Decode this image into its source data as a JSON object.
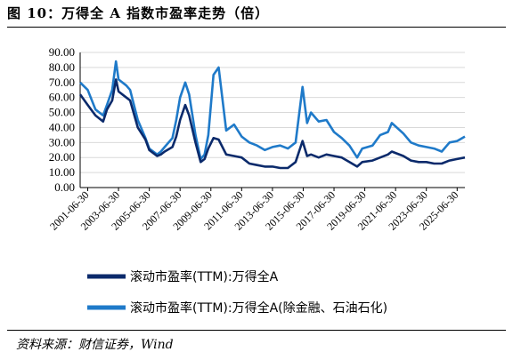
{
  "header": {
    "title": "图 10：万得全 A 指数市盈率走势（倍）"
  },
  "footer": {
    "source": "资料来源：财信证券，Wind"
  },
  "colors": {
    "series1": "#0b2a6b",
    "series2": "#1f7ac9",
    "grid": "#d9d9d9"
  },
  "chart_data": {
    "type": "line",
    "title": "",
    "xlabel": "",
    "ylabel": "",
    "ylim": [
      0,
      90
    ],
    "yticks": [
      "0.00",
      "10.00",
      "20.00",
      "30.00",
      "40.00",
      "50.00",
      "60.00",
      "70.00",
      "80.00",
      "90.00"
    ],
    "xlim": [
      "2001-01-01",
      "2025-12-31"
    ],
    "xticks": [
      "2001-06-30",
      "2003-06-30",
      "2005-06-30",
      "2007-06-30",
      "2009-06-30",
      "2011-06-30",
      "2013-06-30",
      "2015-06-30",
      "2017-06-30",
      "2019-06-30",
      "2021-06-30",
      "2023-06-30",
      "2025-06-30"
    ],
    "legend": "bottom",
    "grid": true,
    "series": [
      {
        "name": "滚动市盈率(TTM):万得全A",
        "points": [
          [
            "2001-01-01",
            62
          ],
          [
            "2001-06-30",
            55
          ],
          [
            "2001-12-31",
            48
          ],
          [
            "2002-06-30",
            44
          ],
          [
            "2002-09-30",
            52
          ],
          [
            "2003-01-31",
            58
          ],
          [
            "2003-04-30",
            72
          ],
          [
            "2003-06-30",
            64
          ],
          [
            "2003-12-31",
            60
          ],
          [
            "2004-03-31",
            58
          ],
          [
            "2004-09-30",
            40
          ],
          [
            "2005-03-31",
            32
          ],
          [
            "2005-06-30",
            25
          ],
          [
            "2005-12-31",
            21
          ],
          [
            "2006-03-31",
            22
          ],
          [
            "2006-06-30",
            24
          ],
          [
            "2006-12-31",
            27
          ],
          [
            "2007-03-31",
            34
          ],
          [
            "2007-06-30",
            45
          ],
          [
            "2007-10-31",
            55
          ],
          [
            "2008-01-31",
            48
          ],
          [
            "2008-06-30",
            30
          ],
          [
            "2008-10-31",
            17
          ],
          [
            "2009-01-31",
            19
          ],
          [
            "2009-04-30",
            26
          ],
          [
            "2009-08-31",
            33
          ],
          [
            "2009-12-31",
            32
          ],
          [
            "2010-06-30",
            22
          ],
          [
            "2010-12-31",
            21
          ],
          [
            "2011-06-30",
            20
          ],
          [
            "2011-12-31",
            16
          ],
          [
            "2012-06-30",
            15
          ],
          [
            "2012-12-31",
            14
          ],
          [
            "2013-06-30",
            14
          ],
          [
            "2013-12-31",
            13
          ],
          [
            "2014-06-30",
            13
          ],
          [
            "2014-12-31",
            17
          ],
          [
            "2015-06-15",
            31
          ],
          [
            "2015-09-30",
            21
          ],
          [
            "2015-12-31",
            22
          ],
          [
            "2016-06-30",
            20
          ],
          [
            "2016-12-31",
            22
          ],
          [
            "2017-06-30",
            21
          ],
          [
            "2017-12-31",
            20
          ],
          [
            "2018-06-30",
            17
          ],
          [
            "2018-12-31",
            14
          ],
          [
            "2019-04-30",
            17
          ],
          [
            "2019-12-31",
            18
          ],
          [
            "2020-06-30",
            20
          ],
          [
            "2020-12-31",
            22
          ],
          [
            "2021-03-31",
            24
          ],
          [
            "2021-12-31",
            21
          ],
          [
            "2022-06-30",
            18
          ],
          [
            "2022-12-31",
            17
          ],
          [
            "2023-06-30",
            17
          ],
          [
            "2023-12-31",
            16
          ],
          [
            "2024-06-30",
            16
          ],
          [
            "2024-12-31",
            18
          ],
          [
            "2025-06-30",
            19
          ],
          [
            "2025-12-31",
            20
          ]
        ]
      },
      {
        "name": "滚动市盈率(TTM):万得全A(除金融、石油石化)",
        "points": [
          [
            "2001-01-01",
            70
          ],
          [
            "2001-06-30",
            65
          ],
          [
            "2001-12-31",
            52
          ],
          [
            "2002-06-30",
            48
          ],
          [
            "2002-09-30",
            55
          ],
          [
            "2003-01-31",
            65
          ],
          [
            "2003-04-30",
            84
          ],
          [
            "2003-06-30",
            72
          ],
          [
            "2003-12-31",
            68
          ],
          [
            "2004-03-31",
            65
          ],
          [
            "2004-09-30",
            45
          ],
          [
            "2005-03-31",
            33
          ],
          [
            "2005-06-30",
            26
          ],
          [
            "2005-12-31",
            22
          ],
          [
            "2006-03-31",
            24
          ],
          [
            "2006-06-30",
            27
          ],
          [
            "2006-12-31",
            33
          ],
          [
            "2007-03-31",
            45
          ],
          [
            "2007-06-30",
            60
          ],
          [
            "2007-10-31",
            70
          ],
          [
            "2008-01-31",
            62
          ],
          [
            "2008-06-30",
            35
          ],
          [
            "2008-10-31",
            19
          ],
          [
            "2009-01-31",
            22
          ],
          [
            "2009-04-30",
            35
          ],
          [
            "2009-08-31",
            75
          ],
          [
            "2009-12-31",
            80
          ],
          [
            "2010-06-30",
            38
          ],
          [
            "2010-12-31",
            42
          ],
          [
            "2011-06-30",
            34
          ],
          [
            "2011-12-31",
            30
          ],
          [
            "2012-06-30",
            28
          ],
          [
            "2012-12-31",
            25
          ],
          [
            "2013-06-30",
            27
          ],
          [
            "2013-12-31",
            28
          ],
          [
            "2014-06-30",
            26
          ],
          [
            "2014-12-31",
            30
          ],
          [
            "2015-06-15",
            67
          ],
          [
            "2015-09-30",
            43
          ],
          [
            "2015-12-31",
            50
          ],
          [
            "2016-06-30",
            44
          ],
          [
            "2016-12-31",
            45
          ],
          [
            "2017-06-30",
            37
          ],
          [
            "2017-12-31",
            33
          ],
          [
            "2018-06-30",
            28
          ],
          [
            "2018-12-31",
            20
          ],
          [
            "2019-04-30",
            26
          ],
          [
            "2019-12-31",
            28
          ],
          [
            "2020-06-30",
            35
          ],
          [
            "2020-12-31",
            37
          ],
          [
            "2021-03-31",
            43
          ],
          [
            "2021-12-31",
            36
          ],
          [
            "2022-06-30",
            30
          ],
          [
            "2022-12-31",
            28
          ],
          [
            "2023-06-30",
            27
          ],
          [
            "2023-12-31",
            26
          ],
          [
            "2024-06-30",
            24
          ],
          [
            "2024-12-31",
            30
          ],
          [
            "2025-06-30",
            31
          ],
          [
            "2025-12-31",
            34
          ]
        ]
      }
    ]
  }
}
